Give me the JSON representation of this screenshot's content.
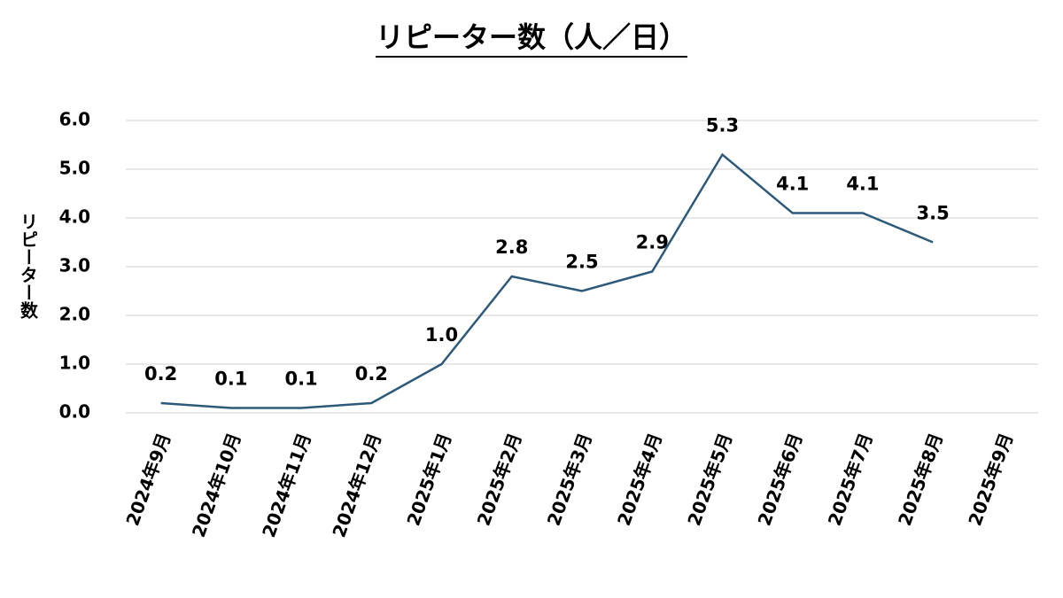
{
  "chart_data": {
    "type": "line",
    "title": "リピーター数（人／日）",
    "y_label": "リピーター数",
    "categories": [
      "2024年9月",
      "2024年10月",
      "2024年11月",
      "2024年12月",
      "2025年1月",
      "2025年2月",
      "2025年3月",
      "2025年4月",
      "2025年5月",
      "2025年6月",
      "2025年7月",
      "2025年8月",
      "2025年9月"
    ],
    "series": [
      {
        "color": "#2e5a7a",
        "values": [
          0.2,
          0.1,
          0.1,
          0.2,
          1.0,
          2.8,
          2.5,
          2.9,
          5.3,
          4.1,
          4.1,
          3.5,
          null
        ],
        "value_labels": [
          "0.2",
          "0.1",
          "0.1",
          "0.2",
          "1.0",
          "2.8",
          "2.5",
          "2.9",
          "5.3",
          "4.1",
          "4.1",
          "3.5",
          null
        ]
      }
    ],
    "ylim": [
      0,
      6
    ],
    "yticks": [
      {
        "value": 0,
        "label": "0.0"
      },
      {
        "value": 1,
        "label": "1.0"
      },
      {
        "value": 2,
        "label": "2.0"
      },
      {
        "value": 3,
        "label": "3.0"
      },
      {
        "value": 4,
        "label": "4.0"
      },
      {
        "value": 5,
        "label": "5.0"
      },
      {
        "value": 6,
        "label": "6.0"
      }
    ],
    "grid": true
  }
}
